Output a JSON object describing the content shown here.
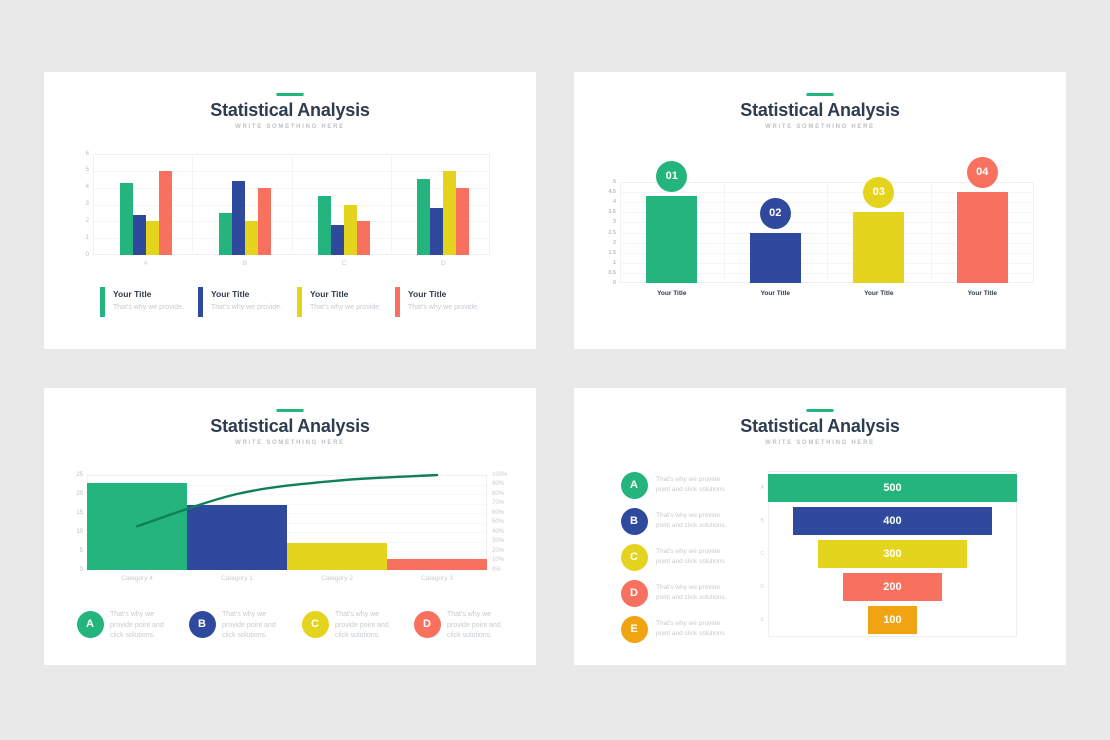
{
  "page": {
    "background": "#e9e9e9",
    "card_background": "#ffffff",
    "accent_green": "#24b47e",
    "title_color": "#2d3c4e"
  },
  "slides": [
    {
      "title": "Statistical Analysis",
      "subtitle": "WRITE SOMETHING HERE"
    },
    {
      "title": "Statistical Analysis",
      "subtitle": "WRITE SOMETHING HERE"
    },
    {
      "title": "Statistical Analysis",
      "subtitle": "WRITE SOMETHING HERE"
    },
    {
      "title": "Statistical Analysis",
      "subtitle": "WRITE SOMETHING HERE"
    }
  ],
  "chart_data": [
    {
      "type": "bar",
      "variant": "grouped",
      "title": "Statistical Analysis",
      "subtitle": "WRITE SOMETHING HERE",
      "categories": [
        "A",
        "B",
        "C",
        "D"
      ],
      "series": [
        {
          "name": "Your Title",
          "color": "#24b47e",
          "values": [
            4.3,
            2.5,
            3.5,
            4.5
          ]
        },
        {
          "name": "Your Title",
          "color": "#2f4a9d",
          "values": [
            2.4,
            4.4,
            1.8,
            2.8
          ]
        },
        {
          "name": "Your Title",
          "color": "#e5d41e",
          "values": [
            2.0,
            2.0,
            3.0,
            5.0
          ]
        },
        {
          "name": "Your Title",
          "color": "#f7715e",
          "values": [
            5.0,
            4.0,
            2.0,
            4.0
          ]
        }
      ],
      "ylim": [
        0,
        6
      ],
      "yticks": [
        "0",
        "1",
        "2",
        "3",
        "4",
        "5",
        "6"
      ],
      "grid": true,
      "legend_position": "bottom",
      "legend": [
        {
          "label": "Your Title",
          "desc": "That's why we provide."
        },
        {
          "label": "Your Title",
          "desc": "That's why we provide."
        },
        {
          "label": "Your Title",
          "desc": "That's why we provide."
        },
        {
          "label": "Your Title",
          "desc": "That's why we provide."
        }
      ]
    },
    {
      "type": "bar",
      "variant": "numbered-badges",
      "title": "Statistical Analysis",
      "subtitle": "WRITE SOMETHING HERE",
      "categories": [
        "Your Title",
        "Your Title",
        "Your Title",
        "Your Title"
      ],
      "values": [
        4.3,
        2.5,
        3.5,
        4.5
      ],
      "badges": [
        "01",
        "02",
        "03",
        "04"
      ],
      "colors": [
        "#24b47e",
        "#2f4a9d",
        "#e5d41e",
        "#f7715e"
      ],
      "ylim": [
        0,
        5
      ],
      "yticks": [
        "0",
        "0.5",
        "1",
        "1.5",
        "2",
        "2.5",
        "3",
        "3.5",
        "4",
        "4.5",
        "5"
      ],
      "grid": true
    },
    {
      "type": "pareto",
      "title": "Statistical Analysis",
      "subtitle": "WRITE SOMETHING HERE",
      "categories": [
        "Category 4",
        "Category 1",
        "Category 2",
        "Category 3"
      ],
      "bar_values": [
        23,
        17,
        7,
        3
      ],
      "bar_colors": [
        "#24b47e",
        "#2f4a9d",
        "#e5d41e",
        "#f7715e"
      ],
      "cumulative_pct": [
        46,
        80,
        94,
        100
      ],
      "line_color": "#117f57",
      "ylim_left": [
        0,
        25
      ],
      "yticks_left": [
        "0",
        "5",
        "10",
        "15",
        "20",
        "25"
      ],
      "yticks_right": [
        "0%",
        "10%",
        "20%",
        "30%",
        "40%",
        "50%",
        "60%",
        "70%",
        "80%",
        "90%",
        "100%"
      ],
      "legend": [
        {
          "letter": "A",
          "color": "#24b47e",
          "lines": [
            "That's why we",
            "provide point and",
            "click solutions."
          ]
        },
        {
          "letter": "B",
          "color": "#2f4a9d",
          "lines": [
            "That's why we",
            "provide point and",
            "click solutions."
          ]
        },
        {
          "letter": "C",
          "color": "#e5d41e",
          "lines": [
            "That's why we",
            "provide point and",
            "click solutions."
          ]
        },
        {
          "letter": "D",
          "color": "#f7715e",
          "lines": [
            "That's why we",
            "provide point and",
            "click solutions."
          ]
        }
      ]
    },
    {
      "type": "funnel",
      "title": "Statistical Analysis",
      "subtitle": "WRITE SOMETHING HERE",
      "row_labels": [
        "A",
        "B",
        "C",
        "D",
        "E"
      ],
      "values": [
        500,
        400,
        300,
        200,
        100
      ],
      "value_labels": [
        "500",
        "400",
        "300",
        "200",
        "100"
      ],
      "colors": [
        "#24b47e",
        "#2f4a9d",
        "#e5d41e",
        "#f7715e",
        "#f0a411"
      ],
      "legend": [
        {
          "letter": "A",
          "color": "#24b47e",
          "lines": [
            "That's why we provide",
            "point and click solutions."
          ]
        },
        {
          "letter": "B",
          "color": "#2f4a9d",
          "lines": [
            "That's why we provide",
            "point and click solutions."
          ]
        },
        {
          "letter": "C",
          "color": "#e5d41e",
          "lines": [
            "That's why we provide",
            "point and click solutions."
          ]
        },
        {
          "letter": "D",
          "color": "#f7715e",
          "lines": [
            "That's why we provide",
            "point and click solutions."
          ]
        },
        {
          "letter": "E",
          "color": "#f0a411",
          "lines": [
            "That's why we provide",
            "point and click solutions."
          ]
        }
      ]
    }
  ]
}
